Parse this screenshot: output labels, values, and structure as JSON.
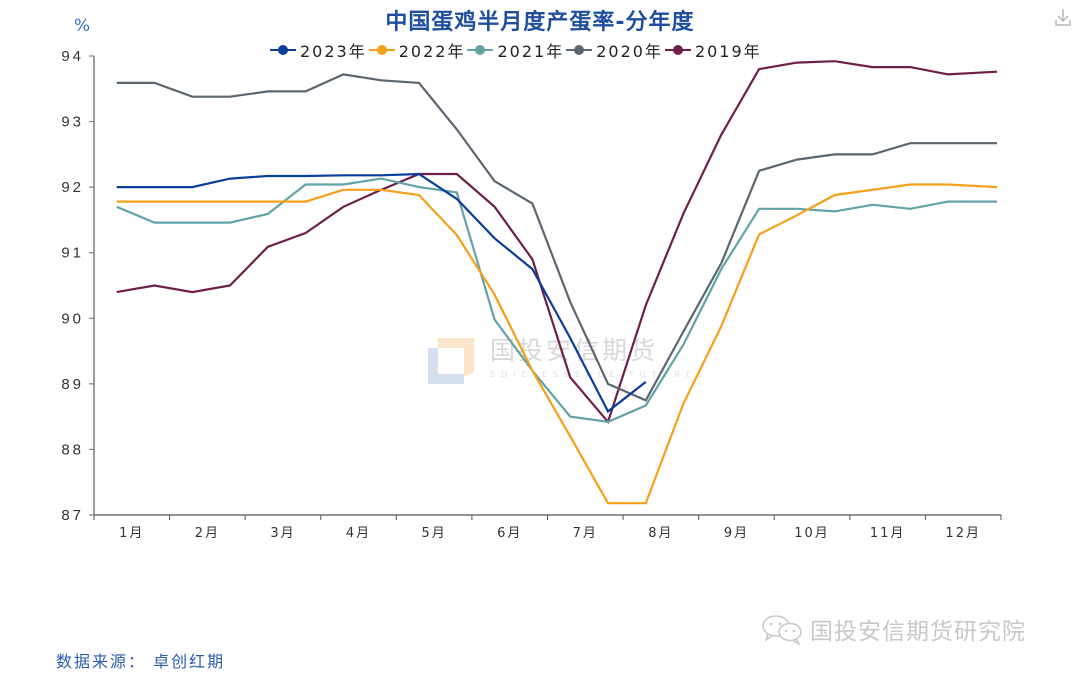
{
  "header": {
    "title": "中国蛋鸡半月度产蛋率-分年度",
    "unit": "%",
    "download_icon": "download-icon"
  },
  "legend": [
    {
      "label": "2023年",
      "color": "#0B3E9B"
    },
    {
      "label": "2022年",
      "color": "#F6A01A"
    },
    {
      "label": "2021年",
      "color": "#62A3A8"
    },
    {
      "label": "2020年",
      "color": "#5C6670"
    },
    {
      "label": "2019年",
      "color": "#6E1F4A"
    }
  ],
  "footer": {
    "source": "数据来源： 卓创红期",
    "wechat_account": "国投安信期货研究院",
    "wechat_icon": "wechat-icon"
  },
  "watermark": {
    "cn": "国投安信期货",
    "en": "SDIC ESSENCE FUTURES"
  },
  "chart_data": {
    "type": "line",
    "title": "中国蛋鸡半月度产蛋率-分年度",
    "xlabel": "",
    "ylabel": "%",
    "ylim": [
      87,
      94
    ],
    "yticks": [
      87,
      88,
      89,
      90,
      91,
      92,
      93,
      94
    ],
    "grid": false,
    "legend_position": "top",
    "categories": [
      "1月",
      "2月",
      "3月",
      "4月",
      "5月",
      "6月",
      "7月",
      "8月",
      "9月",
      "10月",
      "11月",
      "12月"
    ],
    "x": [
      "1月上",
      "1月下",
      "2月上",
      "2月下",
      "3月上",
      "3月下",
      "4月上",
      "4月下",
      "5月上",
      "5月下",
      "6月上",
      "6月下",
      "7月上",
      "7月下",
      "8月上",
      "8月下",
      "9月上",
      "9月下",
      "10月上",
      "10月下",
      "11月上",
      "11月下",
      "12月上",
      "12月下"
    ],
    "series": [
      {
        "name": "2023年",
        "color": "#0B3E9B",
        "values": [
          92.0,
          92.0,
          92.0,
          92.13,
          92.17,
          92.17,
          92.18,
          92.18,
          92.2,
          91.82,
          91.22,
          90.75,
          89.7,
          88.58,
          89.03
        ]
      },
      {
        "name": "2022年",
        "color": "#F6A01A",
        "values": [
          91.78,
          91.78,
          91.78,
          91.78,
          91.78,
          91.78,
          91.96,
          91.96,
          91.88,
          91.27,
          90.36,
          89.2,
          88.2,
          87.18,
          87.18,
          88.7,
          89.88,
          91.28,
          91.57,
          91.88,
          91.96,
          92.04,
          92.04,
          92.0
        ]
      },
      {
        "name": "2021年",
        "color": "#62A3A8",
        "values": [
          91.7,
          91.46,
          91.46,
          91.46,
          91.59,
          92.04,
          92.04,
          92.13,
          92.0,
          91.92,
          89.98,
          89.2,
          88.5,
          88.42,
          88.67,
          89.6,
          90.75,
          91.67,
          91.67,
          91.63,
          91.73,
          91.67,
          91.78,
          91.78
        ]
      },
      {
        "name": "2020年",
        "color": "#5C6670",
        "values": [
          93.59,
          93.59,
          93.38,
          93.38,
          93.46,
          93.46,
          93.72,
          93.63,
          93.59,
          92.88,
          92.09,
          91.75,
          90.25,
          89.0,
          88.75,
          89.8,
          90.84,
          92.25,
          92.42,
          92.5,
          92.5,
          92.67,
          92.67,
          92.67
        ]
      },
      {
        "name": "2019年",
        "color": "#6E1F4A",
        "values": [
          90.4,
          90.5,
          90.4,
          90.5,
          91.09,
          91.3,
          91.7,
          91.96,
          92.2,
          92.2,
          91.7,
          90.9,
          89.1,
          88.42,
          90.2,
          91.6,
          92.8,
          93.8,
          93.9,
          93.92,
          93.83,
          93.83,
          93.72,
          93.76
        ]
      }
    ]
  }
}
